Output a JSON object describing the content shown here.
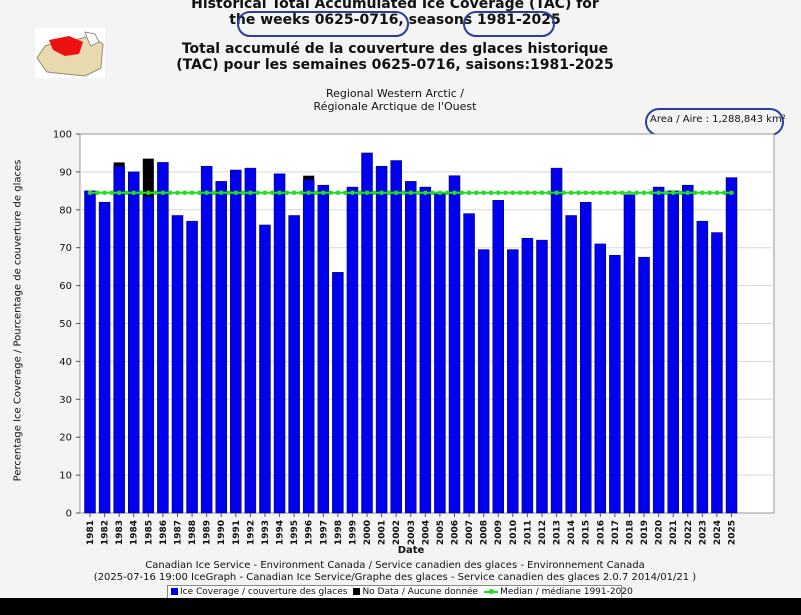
{
  "titles": {
    "en_line1": "Historical Total Accumulated Ice Coverage (TAC) for",
    "en_line2": "the weeks 0625-0716, seasons 1981-2025",
    "fr_line1": "Total accumulé de la couverture des glaces historique",
    "fr_line2": "(TAC) pour les semaines 0625-0716, saisons:1981-2025"
  },
  "region": {
    "line1": "Regional Western Arctic /",
    "line2": "Régionale Arctique de l'Ouest"
  },
  "area_label": "Area / Aire : 1,288,843 km²",
  "footer": {
    "line1": "Canadian Ice Service - Environment Canada / Service canadien des glaces - Environnement Canada",
    "line2": "(2025-07-16 19:00 IceGraph - Canadian Ice Service/Graphe des glaces - Service canadien des glaces 2.0.7 2014/01/21 )"
  },
  "legend": {
    "ice": "Ice Coverage / couverture des glaces",
    "nodata": "No Data / Aucune donnée",
    "median": "Median / médiane 1991-2020"
  },
  "colors": {
    "ice": "#0000ee",
    "nodata": "#000000",
    "median": "#22dd22",
    "annotation": "#2a3f9b"
  },
  "chart_data": {
    "type": "bar",
    "xlabel": "Date",
    "ylabel": "Percentage Ice Coverage / Pourcentage de couverture de glaces",
    "ylim": [
      0,
      100
    ],
    "yticks": [
      0,
      10,
      20,
      30,
      40,
      50,
      60,
      70,
      80,
      90,
      100
    ],
    "grid": true,
    "legend_position": "bottom",
    "categories": [
      "1981",
      "1982",
      "1983",
      "1984",
      "1985",
      "1986",
      "1987",
      "1988",
      "1989",
      "1990",
      "1991",
      "1992",
      "1993",
      "1994",
      "1995",
      "1996",
      "1997",
      "1998",
      "1999",
      "2000",
      "2001",
      "2002",
      "2003",
      "2004",
      "2005",
      "2006",
      "2007",
      "2008",
      "2009",
      "2010",
      "2011",
      "2012",
      "2013",
      "2014",
      "2015",
      "2016",
      "2017",
      "2018",
      "2019",
      "2020",
      "2021",
      "2022",
      "2023",
      "2024",
      "2025"
    ],
    "series": [
      {
        "name": "Ice Coverage / couverture des glaces",
        "values": [
          85,
          82,
          91.5,
          90,
          83.5,
          92.5,
          78.5,
          77,
          91.5,
          87.5,
          90.5,
          91,
          76,
          89.5,
          78.5,
          88,
          86.5,
          63.5,
          86,
          95,
          91.5,
          93,
          87.5,
          86,
          84.5,
          89,
          79,
          69.5,
          82.5,
          69.5,
          72.5,
          72,
          91,
          78.5,
          82,
          71,
          68,
          84,
          67.5,
          86,
          85,
          86.5,
          77,
          74,
          88.5
        ]
      },
      {
        "name": "No Data / Aucune donnée",
        "values": [
          0,
          0,
          1,
          0,
          10,
          0,
          0,
          0,
          0,
          0,
          0,
          0,
          0,
          0,
          0,
          1,
          0,
          0,
          0,
          0,
          0,
          0,
          0,
          0,
          0,
          0,
          0,
          0,
          0,
          0,
          0,
          0,
          0,
          0,
          0,
          0,
          0,
          0,
          0,
          0,
          0,
          0,
          0,
          0,
          0
        ]
      },
      {
        "name": "Median / médiane 1991-2020",
        "type": "line",
        "value": 84.5
      }
    ]
  }
}
